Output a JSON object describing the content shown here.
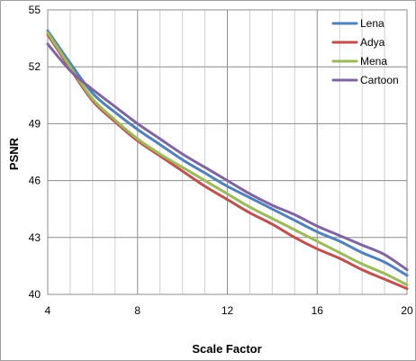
{
  "chart_data": {
    "type": "line",
    "title": "",
    "xlabel": "Scale Factor",
    "ylabel": "PSNR",
    "xlim": [
      4,
      20
    ],
    "ylim": [
      40,
      55
    ],
    "xticks": [
      4,
      8,
      12,
      16,
      20
    ],
    "yticks": [
      40,
      43,
      46,
      49,
      52,
      55
    ],
    "x_minor_grid_step": 1,
    "grid": true,
    "legend_position": "top-right",
    "x": [
      4,
      5,
      6,
      7,
      8,
      9,
      10,
      11,
      12,
      13,
      14,
      15,
      16,
      17,
      18,
      19,
      20
    ],
    "series": [
      {
        "name": "Lena",
        "color": "#4f81bd",
        "values": [
          53.9,
          52.2,
          50.6,
          49.6,
          48.7,
          47.9,
          47.1,
          46.4,
          45.7,
          45.1,
          44.5,
          43.9,
          43.3,
          42.8,
          42.2,
          41.7,
          41.0
        ]
      },
      {
        "name": "Adya",
        "color": "#c0504d",
        "values": [
          53.7,
          51.9,
          50.2,
          49.1,
          48.1,
          47.3,
          46.5,
          45.7,
          45.0,
          44.3,
          43.7,
          43.0,
          42.4,
          41.9,
          41.3,
          40.8,
          40.3
        ]
      },
      {
        "name": "Mena",
        "color": "#9bbb59",
        "values": [
          53.8,
          52.0,
          50.3,
          49.2,
          48.2,
          47.4,
          46.7,
          46.0,
          45.3,
          44.6,
          44.0,
          43.4,
          42.8,
          42.2,
          41.6,
          41.1,
          40.5
        ]
      },
      {
        "name": "Cartoon",
        "color": "#8064a2",
        "values": [
          53.2,
          51.8,
          50.8,
          49.9,
          49.0,
          48.2,
          47.4,
          46.7,
          46.0,
          45.3,
          44.7,
          44.2,
          43.6,
          43.1,
          42.6,
          42.1,
          41.3
        ]
      }
    ]
  }
}
